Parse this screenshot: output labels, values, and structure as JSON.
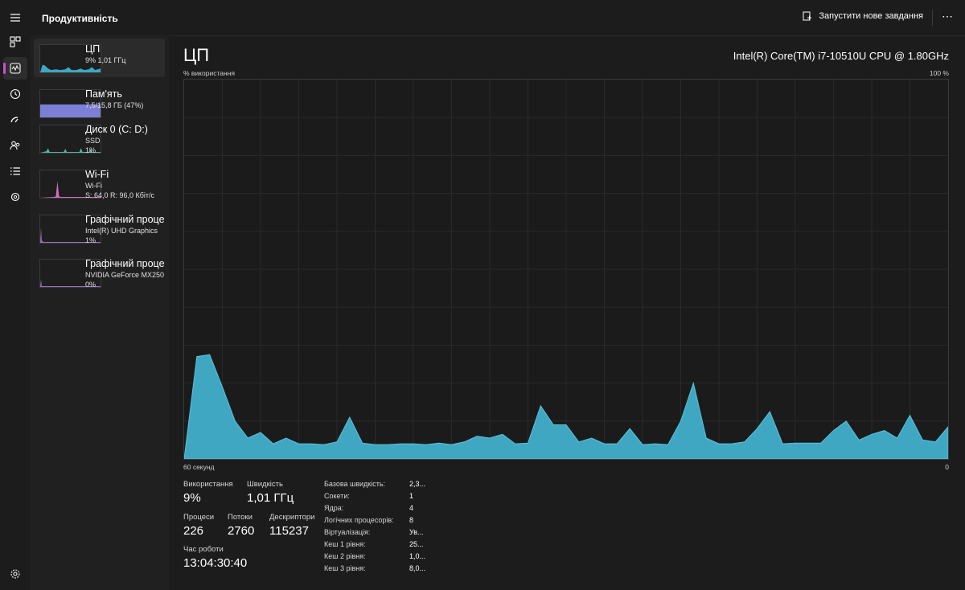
{
  "header": {
    "page_title": "Продуктивність",
    "run_task_label": "Запустити нове завдання",
    "more_label": "⋯"
  },
  "nav_icons": [
    "hamburger-icon",
    "processes-icon",
    "performance-icon",
    "app-history-icon",
    "startup-apps-icon",
    "users-icon",
    "details-icon",
    "services-icon",
    "settings-icon"
  ],
  "sidebar": {
    "items": [
      {
        "title": "ЦП",
        "sub1": "9%  1,01 ГГц",
        "sub2": ""
      },
      {
        "title": "Пам'ять",
        "sub1": "7,5/15,8 ГБ (47%)",
        "sub2": ""
      },
      {
        "title": "Диск 0 (C: D:)",
        "sub1": "SSD",
        "sub2": "1%"
      },
      {
        "title": "Wi-Fi",
        "sub1": "Wi-Fi",
        "sub2": "S: 64,0  R: 96,0 Кбіт/с"
      },
      {
        "title": "Графічний проце",
        "sub1": "Intel(R) UHD Graphics",
        "sub2": "1%"
      },
      {
        "title": "Графічний проце",
        "sub1": "NVIDIA GeForce MX250",
        "sub2": "0%"
      }
    ]
  },
  "main": {
    "title": "ЦП",
    "cpu_model": "Intel(R) Core(TM) i7-10510U CPU @ 1.80GHz",
    "y_label": "% використання",
    "y_max_label": "100 %",
    "x_left_label": "60 секунд",
    "x_right_label": "0"
  },
  "stats": {
    "usage_label": "Використання",
    "usage_value": "9%",
    "speed_label": "Швидкість",
    "speed_value": "1,01 ГГц",
    "processes_label": "Процеси",
    "processes_value": "226",
    "threads_label": "Потоки",
    "threads_value": "2760",
    "handles_label": "Дескриптори",
    "handles_value": "115237",
    "uptime_label": "Час роботи",
    "uptime_value": "13:04:30:40"
  },
  "specs": [
    {
      "label": "Базова швидкість:",
      "value": "2,3..."
    },
    {
      "label": "Сокети:",
      "value": "1"
    },
    {
      "label": "Ядра:",
      "value": "4"
    },
    {
      "label": "Логічних процесорів:",
      "value": "8"
    },
    {
      "label": "Віртуалізація:",
      "value": "Ув..."
    },
    {
      "label": "Кеш 1 рівня:",
      "value": "25..."
    },
    {
      "label": "Кеш 2 рівня:",
      "value": "1,0..."
    },
    {
      "label": "Кеш 3 рівня:",
      "value": "8,0..."
    }
  ],
  "chart_data": {
    "type": "area",
    "x_range": [
      60,
      0
    ],
    "ylim": [
      0,
      100
    ],
    "grid": true,
    "color": "#3fa7c2",
    "values": [
      0,
      27,
      27.5,
      19,
      10,
      5.5,
      7,
      4,
      5.5,
      4,
      4,
      3.8,
      4.5,
      11,
      4.2,
      3.8,
      3.8,
      4,
      4,
      3.8,
      4.2,
      3.8,
      4.5,
      6,
      5.5,
      6.5,
      4,
      4.2,
      14,
      9,
      9,
      4.5,
      5.5,
      4,
      4,
      8,
      3.8,
      4,
      3.8,
      10,
      20,
      5.5,
      4,
      4,
      4.5,
      8,
      12.5,
      4,
      4.2,
      4.2,
      4.2,
      7.5,
      10,
      5,
      6.5,
      7.5,
      5.5,
      11.5,
      5,
      4.5,
      8.5
    ]
  },
  "thumb_colors": {
    "cpu": "#3fa7c2",
    "memory": "#7b7fd6",
    "disk": "#4fb6a8",
    "wifi": "#d46fc4",
    "gpu": "#9b6fc9"
  }
}
